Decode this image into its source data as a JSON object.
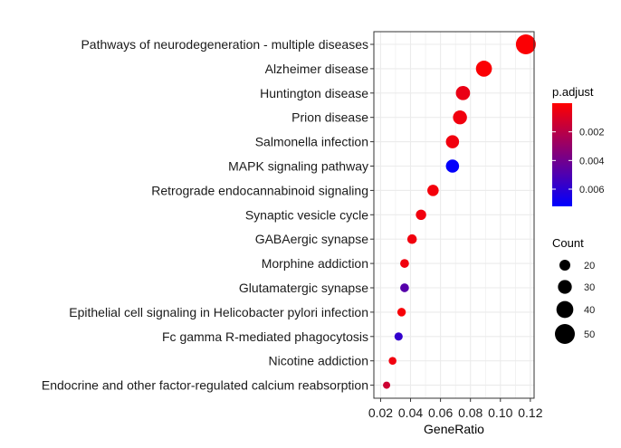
{
  "chart_data": {
    "type": "scatter",
    "xlabel": "GeneRatio",
    "xlim": [
      0.0155,
      0.1225
    ],
    "xticks": [
      0.02,
      0.04,
      0.06,
      0.08,
      0.1,
      0.12
    ],
    "xtick_labels": [
      "0.02",
      "0.04",
      "0.06",
      "0.08",
      "0.10",
      "0.12"
    ],
    "grid": true,
    "categories": [
      "Pathways of neurodegeneration - multiple diseases",
      "Alzheimer disease",
      "Huntington disease",
      "Prion disease",
      "Salmonella infection",
      "MAPK signaling pathway",
      "Retrograde endocannabinoid signaling",
      "Synaptic vesicle cycle",
      "GABAergic synapse",
      "Morphine addiction",
      "Glutamatergic synapse",
      "Epithelial cell signaling in Helicobacter pylori infection",
      "Fc gamma R-mediated phagocytosis",
      "Nicotine addiction",
      "Endocrine and other factor-regulated calcium reabsorption"
    ],
    "points": [
      {
        "gene_ratio": 0.117,
        "count": 62,
        "p_adjust": 0.0001
      },
      {
        "gene_ratio": 0.089,
        "count": 47,
        "p_adjust": 0.0001
      },
      {
        "gene_ratio": 0.075,
        "count": 40,
        "p_adjust": 0.0006
      },
      {
        "gene_ratio": 0.073,
        "count": 39,
        "p_adjust": 0.0004
      },
      {
        "gene_ratio": 0.068,
        "count": 36,
        "p_adjust": 0.0004
      },
      {
        "gene_ratio": 0.068,
        "count": 36,
        "p_adjust": 0.0071
      },
      {
        "gene_ratio": 0.055,
        "count": 29,
        "p_adjust": 0.0003
      },
      {
        "gene_ratio": 0.047,
        "count": 25,
        "p_adjust": 0.0004
      },
      {
        "gene_ratio": 0.041,
        "count": 22,
        "p_adjust": 0.0004
      },
      {
        "gene_ratio": 0.036,
        "count": 19,
        "p_adjust": 0.0004
      },
      {
        "gene_ratio": 0.036,
        "count": 19,
        "p_adjust": 0.0048
      },
      {
        "gene_ratio": 0.034,
        "count": 18,
        "p_adjust": 0.0002
      },
      {
        "gene_ratio": 0.032,
        "count": 17,
        "p_adjust": 0.0058
      },
      {
        "gene_ratio": 0.028,
        "count": 15,
        "p_adjust": 0.0004
      },
      {
        "gene_ratio": 0.024,
        "count": 13,
        "p_adjust": 0.0014
      }
    ],
    "color_scale": {
      "title": "p.adjust",
      "domain": [
        0,
        0.0072
      ],
      "ticks": [
        0.002,
        0.004,
        0.006
      ],
      "tick_labels": [
        "0.002",
        "0.004",
        "0.006"
      ],
      "low_color": "#ff0000",
      "high_color": "#0000ff",
      "reversed": true
    },
    "size_scale": {
      "title": "Count",
      "values": [
        20,
        30,
        40,
        50
      ],
      "labels": [
        "20",
        "30",
        "40",
        "50"
      ]
    },
    "panel_border_color": "#333333",
    "grid_color": "#ebebeb"
  }
}
